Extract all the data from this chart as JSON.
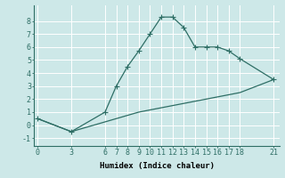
{
  "xlabel": "Humidex (Indice chaleur)",
  "bg_color": "#cde8e8",
  "line_color": "#2e6e65",
  "grid_color": "#b0d8d8",
  "line1_x": [
    0,
    3,
    6,
    7,
    8,
    9,
    10,
    11,
    12,
    13,
    14,
    15,
    16,
    17,
    18,
    21
  ],
  "line1_y": [
    0.5,
    -0.5,
    1.0,
    3.0,
    4.5,
    5.7,
    7.0,
    8.3,
    8.3,
    7.5,
    6.0,
    6.0,
    6.0,
    5.7,
    5.1,
    3.5
  ],
  "line2_x": [
    0,
    3,
    9,
    12,
    15,
    18,
    21
  ],
  "line2_y": [
    0.5,
    -0.5,
    1.0,
    1.5,
    2.0,
    2.5,
    3.5
  ],
  "xlim": [
    -0.3,
    21.5
  ],
  "ylim": [
    -1.6,
    9.2
  ],
  "xticks": [
    0,
    3,
    6,
    7,
    8,
    9,
    10,
    11,
    12,
    13,
    14,
    15,
    16,
    17,
    18,
    21
  ],
  "yticks": [
    -1,
    0,
    1,
    2,
    3,
    4,
    5,
    6,
    7,
    8
  ],
  "markersize": 2.5,
  "linewidth": 0.9,
  "xlabel_fontsize": 6.5,
  "tick_fontsize": 6.0
}
